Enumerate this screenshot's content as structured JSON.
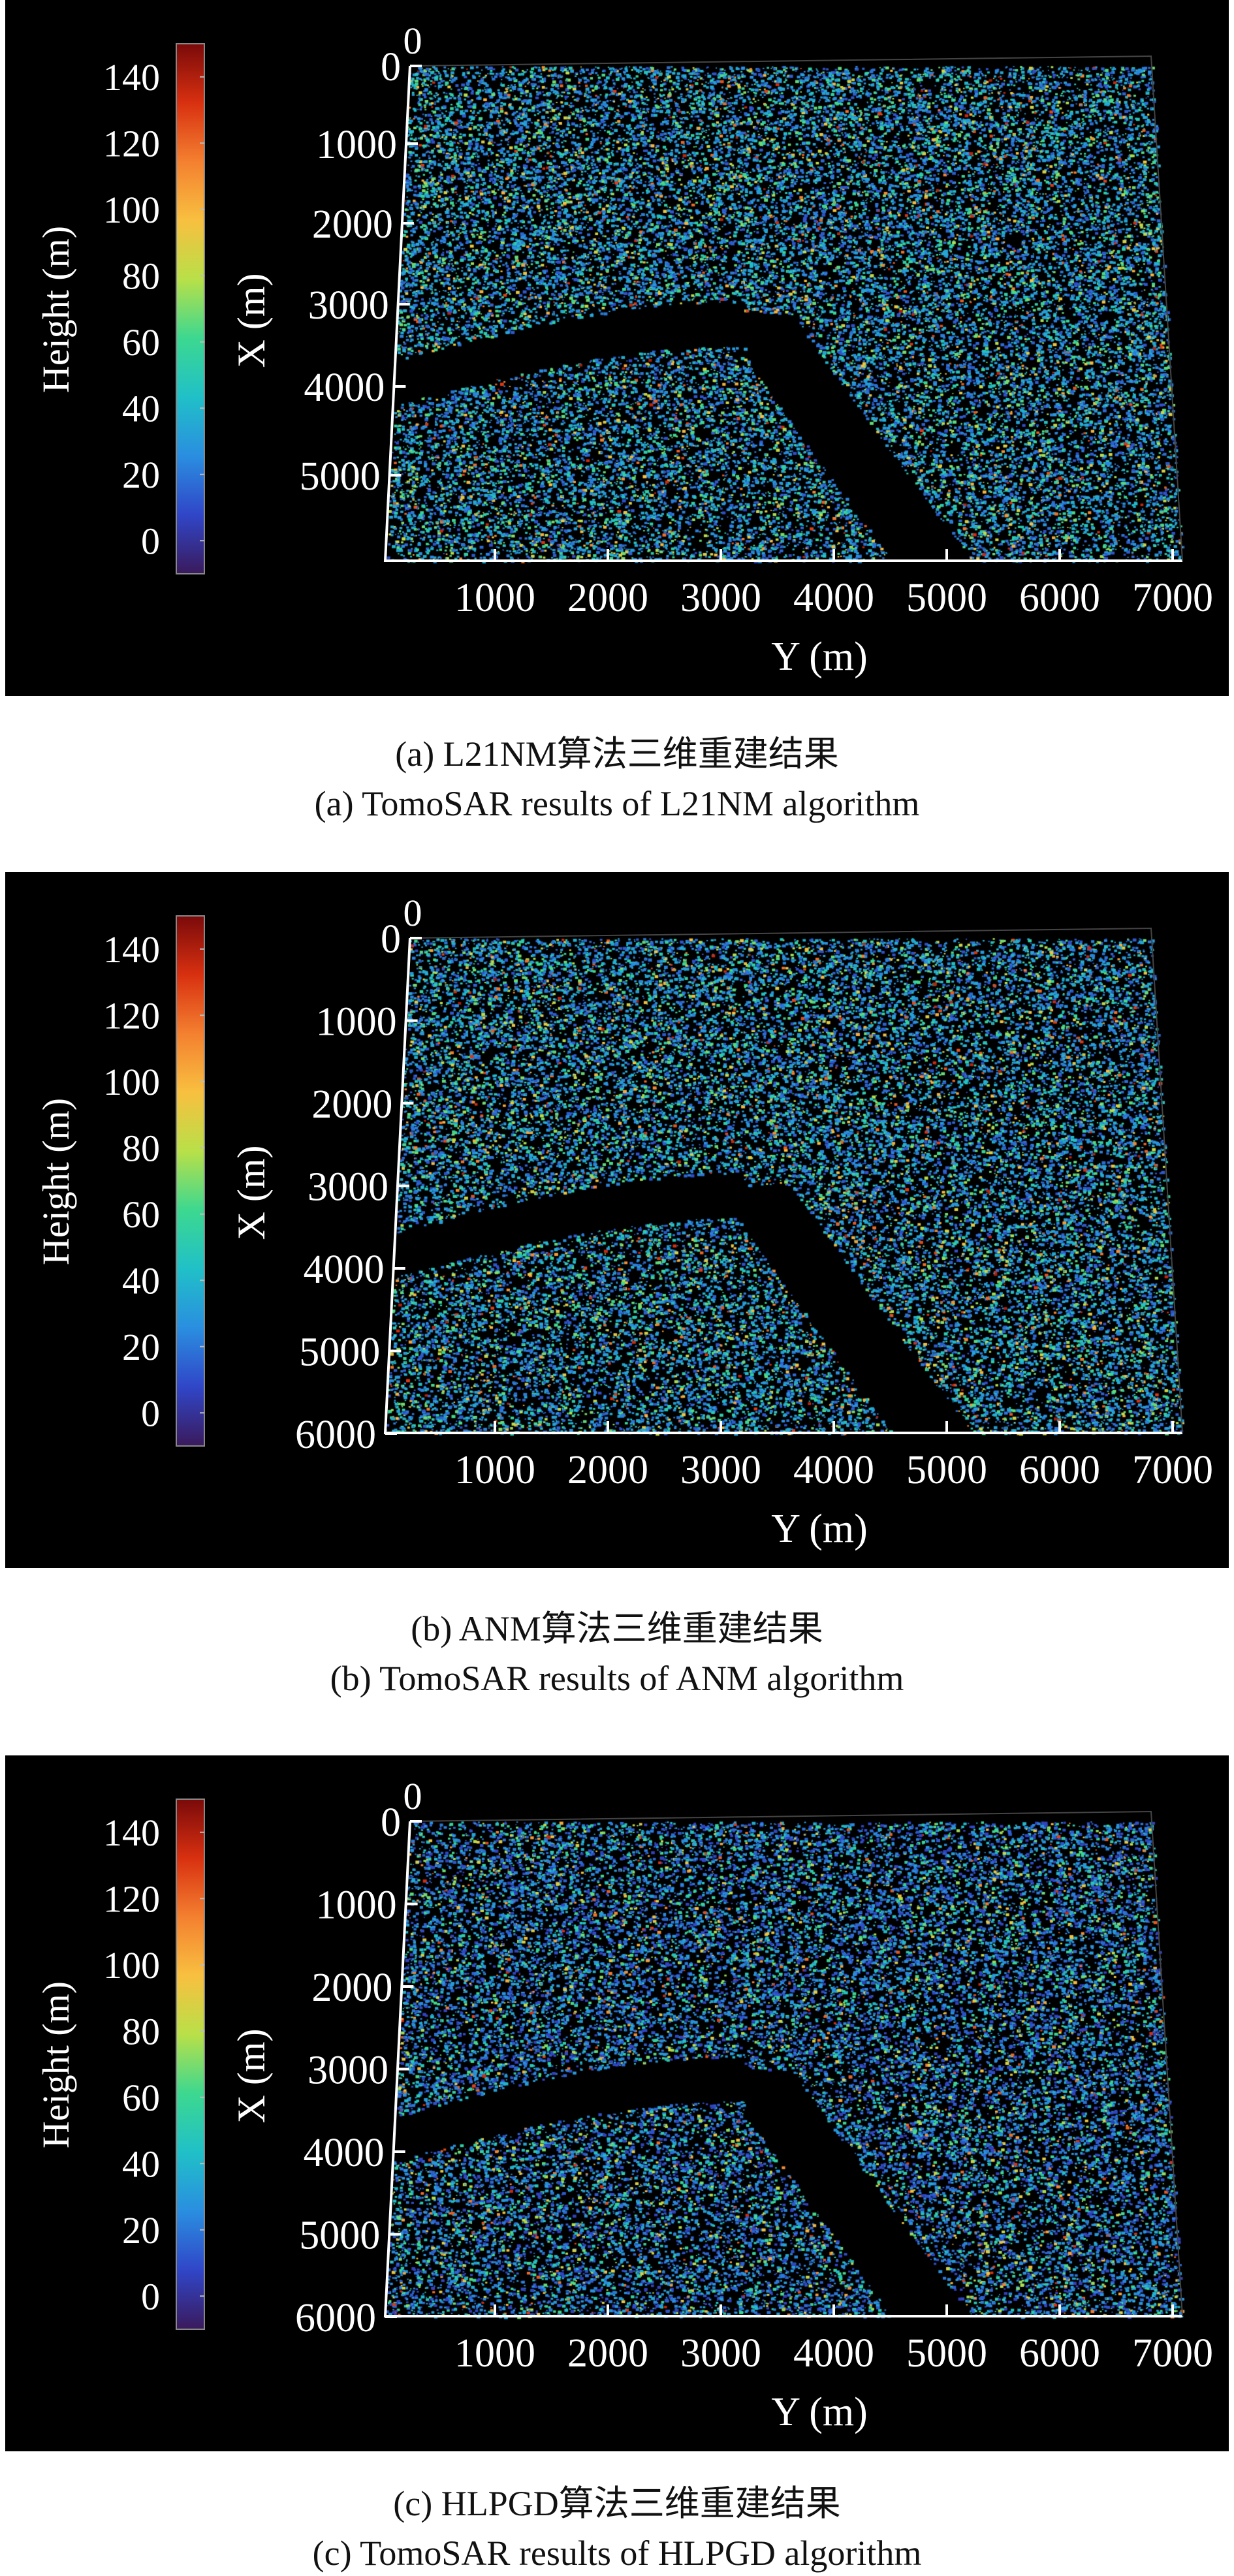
{
  "colors": {
    "background": "#000000",
    "axis": "#ffffff",
    "caption_text": "#111111"
  },
  "colorbar": {
    "label": "Height (m)",
    "ticks": [
      "0",
      "20",
      "40",
      "60",
      "80",
      "100",
      "120",
      "140"
    ],
    "range": [
      -10,
      150
    ],
    "colormap": [
      "#3a1a5c",
      "#3046c8",
      "#2a8ee0",
      "#20c0c8",
      "#3cd890",
      "#b8e048",
      "#f8c040",
      "#f48030",
      "#d83010",
      "#7a0a0a"
    ]
  },
  "chart_data": [
    {
      "type": "scatter",
      "title": "",
      "xlabel": "Y (m)",
      "ylabel": "X (m)",
      "xticks": [
        "1000",
        "2000",
        "3000",
        "4000",
        "5000",
        "6000",
        "7000"
      ],
      "yticks": [
        "0",
        "1000",
        "2000",
        "3000",
        "4000",
        "5000"
      ],
      "top_tick": "0",
      "xlim": [
        0,
        7100
      ],
      "ylim": [
        0,
        6000
      ],
      "colorbar_label": "Height (m)",
      "caption_cn": "(a) L21NM算法三维重建结果",
      "caption_en": "(a) TomoSAR results of L21NM algorithm"
    },
    {
      "type": "scatter",
      "title": "",
      "xlabel": "Y (m)",
      "ylabel": "X (m)",
      "xticks": [
        "1000",
        "2000",
        "3000",
        "4000",
        "5000",
        "6000",
        "7000"
      ],
      "yticks": [
        "0",
        "1000",
        "2000",
        "3000",
        "4000",
        "5000",
        "6000"
      ],
      "top_tick": "0",
      "xlim": [
        0,
        7100
      ],
      "ylim": [
        0,
        6000
      ],
      "colorbar_label": "Height (m)",
      "caption_cn": "(b) ANM算法三维重建结果",
      "caption_en": "(b) TomoSAR results of ANM algorithm"
    },
    {
      "type": "scatter",
      "title": "",
      "xlabel": "Y (m)",
      "ylabel": "X (m)",
      "xticks": [
        "1000",
        "2000",
        "3000",
        "4000",
        "5000",
        "6000",
        "7000"
      ],
      "yticks": [
        "0",
        "1000",
        "2000",
        "3000",
        "4000",
        "5000",
        "6000"
      ],
      "top_tick": "0",
      "xlim": [
        0,
        7100
      ],
      "ylim": [
        0,
        6000
      ],
      "colorbar_label": "Height (m)",
      "caption_cn": "(c) HLPGD算法三维重建结果",
      "caption_en": "(c) TomoSAR results of HLPGD algorithm"
    }
  ]
}
